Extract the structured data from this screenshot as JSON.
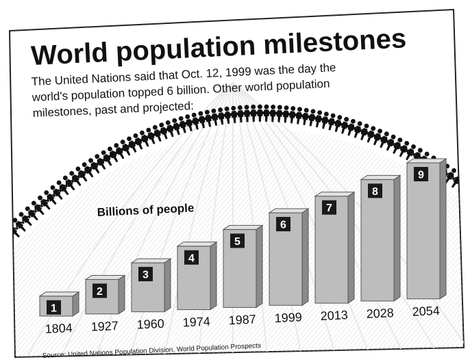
{
  "chart_data": {
    "type": "bar",
    "title": "World population milestones",
    "subtitle": "The United Nations said that Oct. 12, 1999 was the day the world's population topped 6 billion. Other world population milestones, past and projected:",
    "subtitle_lines": [
      "The United Nations said that Oct. 12, 1999 was the day the",
      "world's population topped 6 billion. Other world population",
      "milestones, past and projected:"
    ],
    "ylabel": "Billions of people",
    "xlabel": "",
    "categories": [
      "1804",
      "1927",
      "1960",
      "1974",
      "1987",
      "1999",
      "2013",
      "2028",
      "2054"
    ],
    "values": [
      1,
      2,
      3,
      4,
      5,
      6,
      7,
      8,
      9
    ],
    "ylim": [
      0,
      9
    ],
    "source": "Source: United Nations Population Division, World Population Prospects",
    "colors": {
      "bar_front": "#bdbdbd",
      "bar_side": "#8a8a8a",
      "bar_top": "#e2e2e2",
      "label_box": "#1a1a1a",
      "label_text": "#ffffff",
      "border": "#222222",
      "text": "#111111"
    },
    "decoration": "people-holding-hands-arc"
  }
}
